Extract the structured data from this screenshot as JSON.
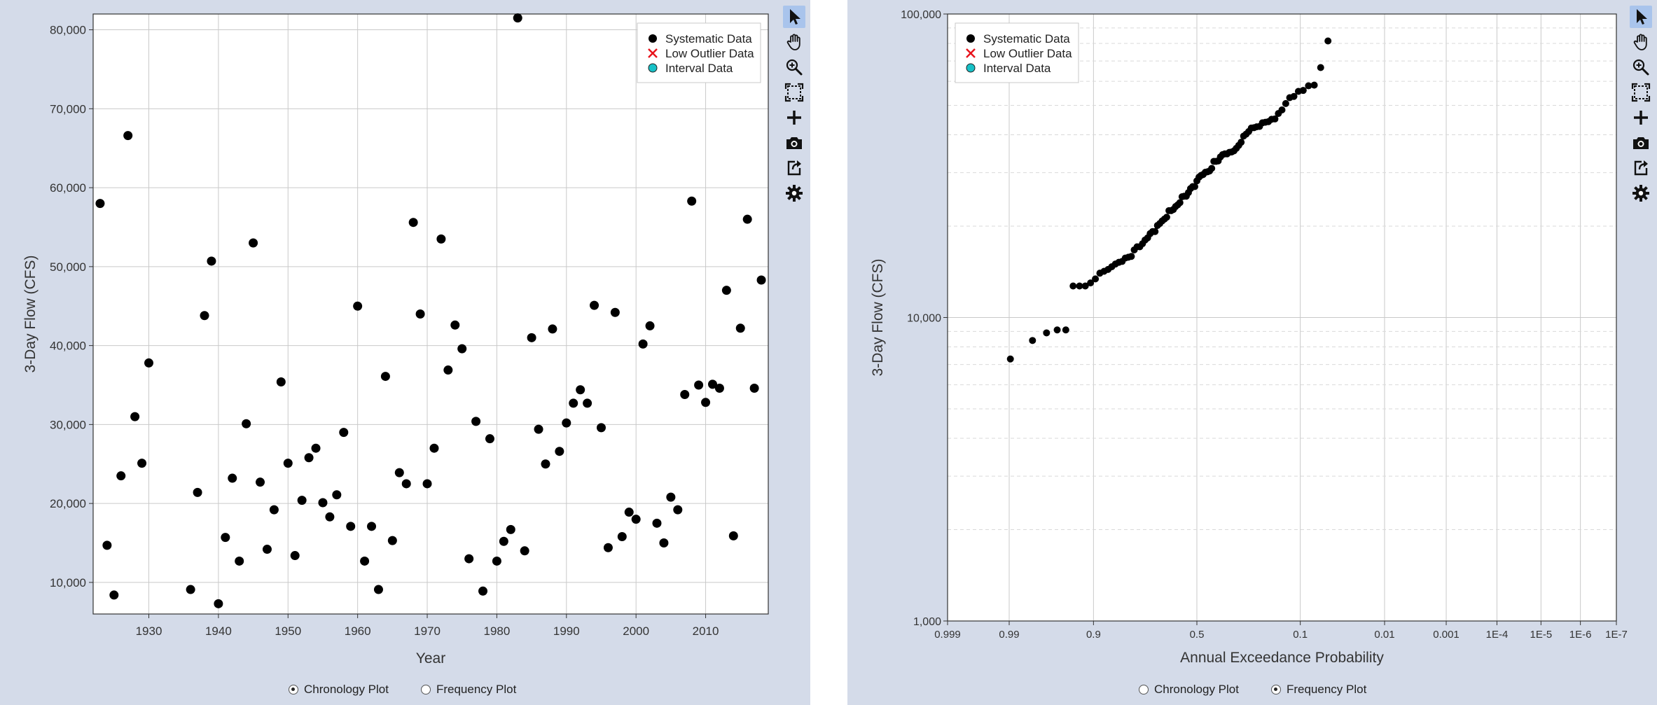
{
  "left_panel": {
    "radio_chronology": "Chronology Plot",
    "radio_frequency": "Frequency Plot",
    "selected": "chronology"
  },
  "right_panel": {
    "radio_chronology": "Chronology Plot",
    "radio_frequency": "Frequency Plot",
    "selected": "frequency"
  },
  "toolbar_icons": [
    "pointer-icon",
    "pan-hand-icon",
    "zoom-in-icon",
    "zoom-extents-icon",
    "add-icon",
    "camera-icon",
    "export-icon",
    "settings-gear-icon"
  ],
  "colors": {
    "systematic": "#000000",
    "low_outlier": "#e8141c",
    "interval": "#17c1c7",
    "active_tool": "#a9c4ec",
    "panel_bg": "#d4dbe9"
  },
  "chart_data": [
    {
      "type": "scatter",
      "title": "",
      "xlabel": "Year",
      "ylabel": "3-Day Flow (CFS)",
      "xlim": [
        1922,
        2019
      ],
      "ylim": [
        6000,
        82000
      ],
      "xticks": [
        1930,
        1940,
        1950,
        1960,
        1970,
        1980,
        1990,
        2000,
        2010
      ],
      "xtick_labels": [
        "1930",
        "1940",
        "1950",
        "1960",
        "1970",
        "1980",
        "1990",
        "2000",
        "2010"
      ],
      "yticks": [
        10000,
        20000,
        30000,
        40000,
        50000,
        60000,
        70000,
        80000
      ],
      "ytick_labels": [
        "10,000",
        "20,000",
        "30,000",
        "40,000",
        "50,000",
        "60,000",
        "70,000",
        "80,000"
      ],
      "grid": true,
      "legend": {
        "position": "top-right",
        "entries": [
          "Systematic Data",
          "Low Outlier Data",
          "Interval Data"
        ]
      },
      "series": [
        {
          "name": "Systematic Data",
          "points": [
            [
              1923,
              58000
            ],
            [
              1924,
              14700
            ],
            [
              1925,
              8400
            ],
            [
              1926,
              23500
            ],
            [
              1927,
              66600
            ],
            [
              1928,
              31000
            ],
            [
              1929,
              25100
            ],
            [
              1930,
              37800
            ],
            [
              1936,
              9100
            ],
            [
              1937,
              21400
            ],
            [
              1938,
              43800
            ],
            [
              1939,
              50700
            ],
            [
              1940,
              7300
            ],
            [
              1941,
              15700
            ],
            [
              1942,
              23200
            ],
            [
              1943,
              12700
            ],
            [
              1944,
              30100
            ],
            [
              1945,
              53000
            ],
            [
              1946,
              22700
            ],
            [
              1947,
              14200
            ],
            [
              1948,
              19200
            ],
            [
              1949,
              35400
            ],
            [
              1950,
              25100
            ],
            [
              1951,
              13400
            ],
            [
              1952,
              20400
            ],
            [
              1953,
              25800
            ],
            [
              1954,
              27000
            ],
            [
              1955,
              20100
            ],
            [
              1956,
              18300
            ],
            [
              1957,
              21100
            ],
            [
              1958,
              29000
            ],
            [
              1959,
              17100
            ],
            [
              1960,
              45000
            ],
            [
              1961,
              12700
            ],
            [
              1962,
              17100
            ],
            [
              1963,
              9100
            ],
            [
              1964,
              36100
            ],
            [
              1965,
              15300
            ],
            [
              1966,
              23900
            ],
            [
              1967,
              22500
            ],
            [
              1968,
              55600
            ],
            [
              1969,
              44000
            ],
            [
              1970,
              22500
            ],
            [
              1971,
              27000
            ],
            [
              1972,
              53500
            ],
            [
              1973,
              36900
            ],
            [
              1974,
              42600
            ],
            [
              1975,
              39600
            ],
            [
              1976,
              13000
            ],
            [
              1977,
              30400
            ],
            [
              1978,
              8900
            ],
            [
              1979,
              28200
            ],
            [
              1980,
              12700
            ],
            [
              1981,
              15200
            ],
            [
              1982,
              16700
            ],
            [
              1983,
              81500
            ],
            [
              1984,
              14000
            ],
            [
              1985,
              41000
            ],
            [
              1986,
              29400
            ],
            [
              1987,
              25000
            ],
            [
              1988,
              42100
            ],
            [
              1989,
              26600
            ],
            [
              1990,
              30200
            ],
            [
              1991,
              32700
            ],
            [
              1992,
              34400
            ],
            [
              1993,
              32700
            ],
            [
              1994,
              45100
            ],
            [
              1995,
              29600
            ],
            [
              1996,
              14400
            ],
            [
              1997,
              44200
            ],
            [
              1998,
              15800
            ],
            [
              1999,
              18900
            ],
            [
              2000,
              18000
            ],
            [
              2001,
              40200
            ],
            [
              2002,
              42500
            ],
            [
              2003,
              17500
            ],
            [
              2004,
              15000
            ],
            [
              2005,
              20800
            ],
            [
              2006,
              19200
            ],
            [
              2007,
              33800
            ],
            [
              2008,
              58300
            ],
            [
              2009,
              35000
            ],
            [
              2010,
              32800
            ],
            [
              2011,
              35100
            ],
            [
              2012,
              34600
            ],
            [
              2013,
              47000
            ],
            [
              2014,
              15900
            ],
            [
              2015,
              42200
            ],
            [
              2016,
              56000
            ],
            [
              2017,
              34600
            ],
            [
              2018,
              48300
            ]
          ]
        }
      ]
    },
    {
      "type": "scatter",
      "title": "",
      "xlabel": "Annual Exceedance Probability",
      "ylabel": "3-Day Flow (CFS)",
      "x_scale": "normal-probability",
      "y_scale": "log",
      "xlim": [
        0.999,
        1e-07
      ],
      "ylim": [
        1000,
        100000
      ],
      "xticks": [
        0.999,
        0.99,
        0.9,
        0.5,
        0.1,
        0.01,
        0.001,
        0.0001,
        1e-05,
        1e-06,
        1e-07
      ],
      "xtick_labels": [
        "0.999",
        "0.99",
        "0.9",
        "0.5",
        "0.1",
        "0.01",
        "0.001",
        "1E-4",
        "1E-5",
        "1E-6",
        "1E-7"
      ],
      "yticks": [
        1000,
        10000,
        100000
      ],
      "ytick_labels": [
        "1,000",
        "10,000",
        "100,000"
      ],
      "grid": true,
      "legend": {
        "position": "top-left",
        "entries": [
          "Systematic Data",
          "Low Outlier Data",
          "Interval Data"
        ]
      },
      "series": [
        {
          "name": "Systematic Data",
          "points": [
            [
              0.9896,
              7300
            ],
            [
              0.9792,
              8400
            ],
            [
              0.9688,
              8900
            ],
            [
              0.9583,
              9100
            ],
            [
              0.9479,
              9100
            ],
            [
              0.9375,
              12700
            ],
            [
              0.9271,
              12700
            ],
            [
              0.9167,
              12700
            ],
            [
              0.9063,
              13000
            ],
            [
              0.8958,
              13400
            ],
            [
              0.8854,
              14000
            ],
            [
              0.875,
              14200
            ],
            [
              0.8646,
              14400
            ],
            [
              0.8542,
              14700
            ],
            [
              0.8438,
              15000
            ],
            [
              0.8333,
              15200
            ],
            [
              0.8229,
              15300
            ],
            [
              0.8125,
              15700
            ],
            [
              0.8021,
              15800
            ],
            [
              0.7917,
              15900
            ],
            [
              0.7813,
              16700
            ],
            [
              0.7708,
              17100
            ],
            [
              0.7604,
              17100
            ],
            [
              0.75,
              17500
            ],
            [
              0.7396,
              18000
            ],
            [
              0.7292,
              18300
            ],
            [
              0.7188,
              18900
            ],
            [
              0.7083,
              19200
            ],
            [
              0.6979,
              19200
            ],
            [
              0.6875,
              20100
            ],
            [
              0.6771,
              20400
            ],
            [
              0.6667,
              20800
            ],
            [
              0.6563,
              21100
            ],
            [
              0.6458,
              21400
            ],
            [
              0.6354,
              22500
            ],
            [
              0.625,
              22500
            ],
            [
              0.6146,
              22700
            ],
            [
              0.6042,
              23200
            ],
            [
              0.5938,
              23500
            ],
            [
              0.5833,
              23900
            ],
            [
              0.5729,
              25000
            ],
            [
              0.5625,
              25100
            ],
            [
              0.5521,
              25100
            ],
            [
              0.5417,
              25800
            ],
            [
              0.5313,
              26600
            ],
            [
              0.5208,
              27000
            ],
            [
              0.5104,
              27000
            ],
            [
              0.5,
              28200
            ],
            [
              0.4896,
              29000
            ],
            [
              0.4792,
              29400
            ],
            [
              0.4688,
              29600
            ],
            [
              0.4583,
              30100
            ],
            [
              0.4479,
              30200
            ],
            [
              0.4375,
              30400
            ],
            [
              0.4271,
              31000
            ],
            [
              0.4167,
              32700
            ],
            [
              0.4063,
              32700
            ],
            [
              0.3958,
              32800
            ],
            [
              0.3854,
              33800
            ],
            [
              0.375,
              34400
            ],
            [
              0.3646,
              34600
            ],
            [
              0.3542,
              34600
            ],
            [
              0.3438,
              35000
            ],
            [
              0.3333,
              35100
            ],
            [
              0.3229,
              35400
            ],
            [
              0.3125,
              36100
            ],
            [
              0.3021,
              36900
            ],
            [
              0.2917,
              37800
            ],
            [
              0.2813,
              39600
            ],
            [
              0.2708,
              40200
            ],
            [
              0.2604,
              41000
            ],
            [
              0.25,
              42100
            ],
            [
              0.2396,
              42200
            ],
            [
              0.2292,
              42500
            ],
            [
              0.2188,
              42600
            ],
            [
              0.2083,
              43800
            ],
            [
              0.1979,
              44000
            ],
            [
              0.1875,
              44200
            ],
            [
              0.1771,
              45000
            ],
            [
              0.1667,
              45100
            ],
            [
              0.1563,
              47000
            ],
            [
              0.1458,
              48300
            ],
            [
              0.1354,
              50700
            ],
            [
              0.125,
              53000
            ],
            [
              0.1146,
              53500
            ],
            [
              0.1042,
              55600
            ],
            [
              0.0938,
              56000
            ],
            [
              0.0833,
              58000
            ],
            [
              0.0729,
              58300
            ],
            [
              0.0625,
              66600
            ],
            [
              0.0521,
              81500
            ]
          ]
        }
      ]
    }
  ]
}
